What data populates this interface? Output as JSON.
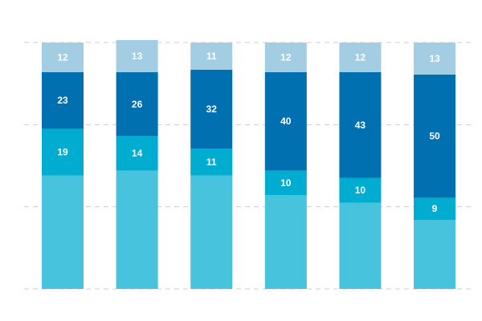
{
  "chart_data": {
    "type": "bar",
    "stacked": true,
    "title": "",
    "xlabel": "",
    "ylabel": "",
    "ylim": [
      0,
      100
    ],
    "grid": true,
    "categories": [
      "",
      "",
      "",
      "",
      "",
      ""
    ],
    "series": [
      {
        "values": [
          46,
          48,
          46,
          38,
          35,
          28
        ],
        "color": "#47c3dd",
        "labels_visible": false
      },
      {
        "values": [
          19,
          14,
          11,
          10,
          10,
          9
        ],
        "color": "#00acd0"
      },
      {
        "values": [
          23,
          26,
          32,
          40,
          43,
          50
        ],
        "color": "#0070b1"
      },
      {
        "values": [
          12,
          13,
          11,
          12,
          12,
          13
        ],
        "color": "#a3cde3"
      }
    ]
  }
}
